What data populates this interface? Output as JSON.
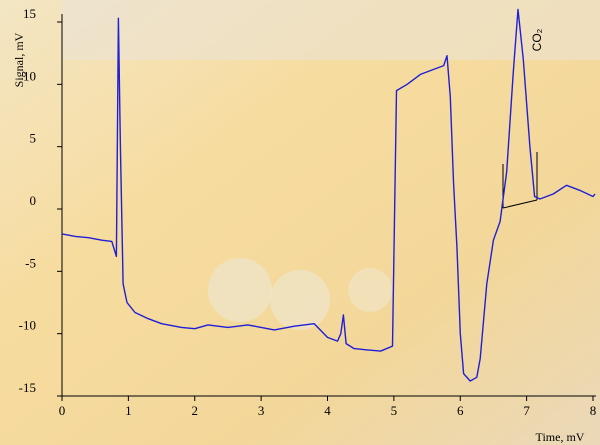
{
  "chart_data": {
    "type": "line",
    "ylabel": "Signal, mV",
    "xlabel": "Time, mV",
    "annotation": "CO₂",
    "color": "#1f1fd6",
    "x": [
      0,
      0.2,
      0.4,
      0.6,
      0.75,
      0.82,
      0.85,
      0.88,
      0.92,
      0.98,
      1.1,
      1.3,
      1.5,
      1.8,
      2.0,
      2.2,
      2.5,
      2.8,
      3.0,
      3.2,
      3.5,
      3.8,
      4.0,
      4.15,
      4.2,
      4.24,
      4.28,
      4.4,
      4.6,
      4.8,
      4.98,
      5.04,
      5.2,
      5.4,
      5.6,
      5.75,
      5.8,
      5.85,
      5.9,
      5.95,
      6.0,
      6.05,
      6.15,
      6.25,
      6.3,
      6.4,
      6.5,
      6.6,
      6.7,
      6.8,
      6.87,
      6.95,
      7.05,
      7.12,
      7.2,
      7.4,
      7.6,
      7.8,
      8.0,
      8.03
    ],
    "values": [
      -2.0,
      -2.2,
      -2.3,
      -2.5,
      -2.6,
      -3.8,
      15.3,
      5,
      -6,
      -7.5,
      -8.3,
      -8.8,
      -9.2,
      -9.5,
      -9.6,
      -9.3,
      -9.5,
      -9.3,
      -9.5,
      -9.7,
      -9.4,
      -9.2,
      -10.3,
      -10.6,
      -10.0,
      -8.5,
      -10.8,
      -11.2,
      -11.3,
      -11.4,
      -11.0,
      9.5,
      10.0,
      10.8,
      11.2,
      11.5,
      12.3,
      9,
      2,
      -3,
      -10,
      -13.2,
      -13.8,
      -13.5,
      -12,
      -6,
      -2.5,
      -1,
      3,
      11,
      16.0,
      12,
      5,
      1.0,
      0.8,
      1.2,
      1.9,
      1.5,
      1.0,
      1.2
    ],
    "xlim": [
      0,
      8
    ],
    "xticks": [
      0,
      1,
      2,
      3,
      4,
      5,
      6,
      7,
      8
    ],
    "ylim": [
      -15,
      15
    ],
    "yticks": [
      -15,
      -10,
      -5,
      0,
      5,
      10,
      15
    ],
    "grid": false
  }
}
